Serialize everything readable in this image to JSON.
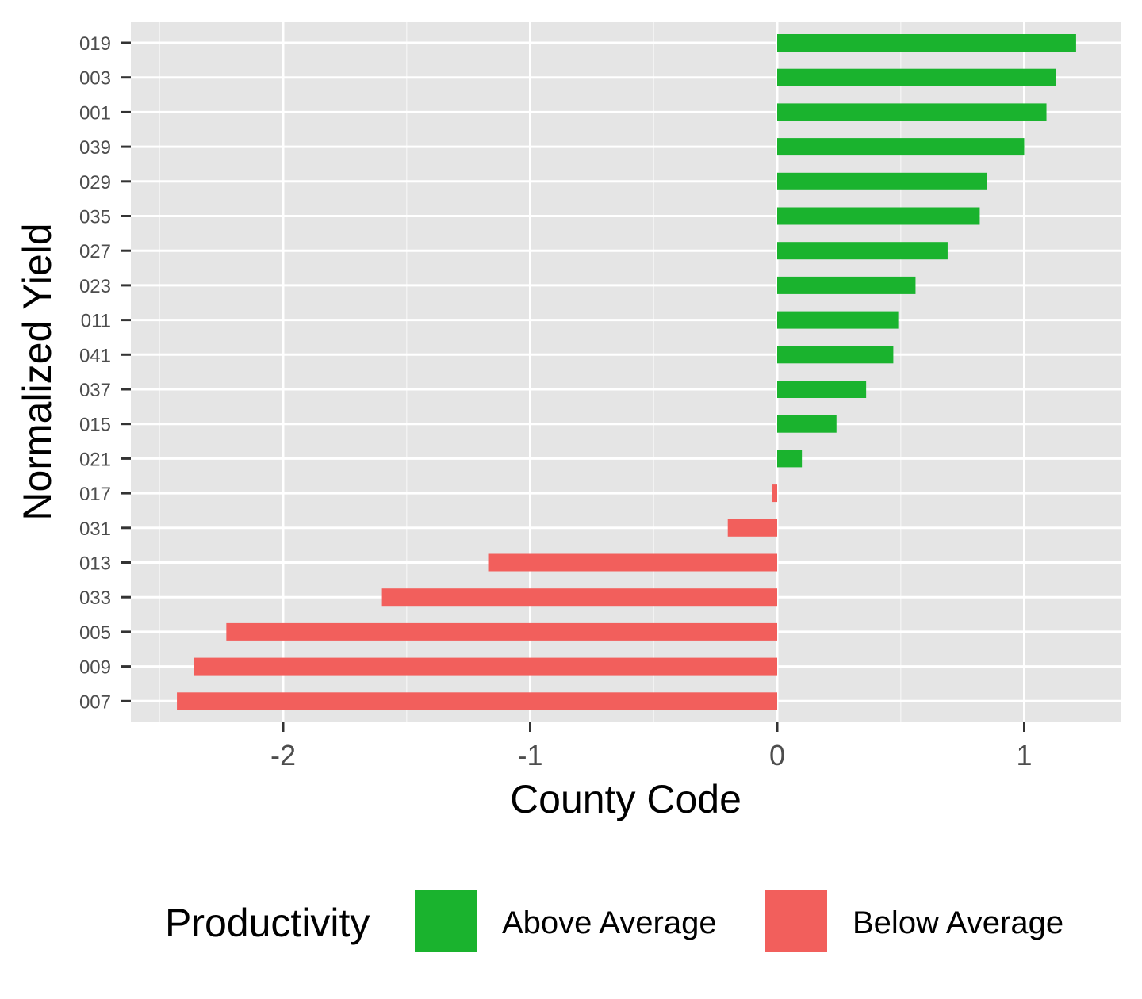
{
  "chart_data": {
    "type": "bar",
    "orientation": "horizontal",
    "xlabel": "County Code",
    "ylabel": "Normalized Yield",
    "xlim": [
      -2.5,
      1.4
    ],
    "xticks": [
      -2,
      -1,
      0,
      1
    ],
    "xtick_labels": [
      "-2",
      "-1",
      "0",
      "1"
    ],
    "grid": true,
    "legend_position": "bottom",
    "legend": {
      "title": "Productivity",
      "entries": [
        {
          "label": "Above Average",
          "color": "#1AB32E"
        },
        {
          "label": "Below Average",
          "color": "#F25F5C"
        }
      ]
    },
    "categories": [
      "019",
      "003",
      "001",
      "039",
      "029",
      "035",
      "027",
      "023",
      "011",
      "041",
      "037",
      "015",
      "021",
      "017",
      "031",
      "013",
      "033",
      "005",
      "009",
      "007"
    ],
    "values": [
      1.21,
      1.13,
      1.09,
      1.0,
      0.85,
      0.82,
      0.69,
      0.56,
      0.49,
      0.47,
      0.36,
      0.24,
      0.1,
      -0.02,
      -0.2,
      -1.17,
      -1.6,
      -2.23,
      -2.36,
      -2.43
    ],
    "groups": [
      "Above Average",
      "Above Average",
      "Above Average",
      "Above Average",
      "Above Average",
      "Above Average",
      "Above Average",
      "Above Average",
      "Above Average",
      "Above Average",
      "Above Average",
      "Above Average",
      "Above Average",
      "Below Average",
      "Below Average",
      "Below Average",
      "Below Average",
      "Below Average",
      "Below Average",
      "Below Average"
    ]
  }
}
